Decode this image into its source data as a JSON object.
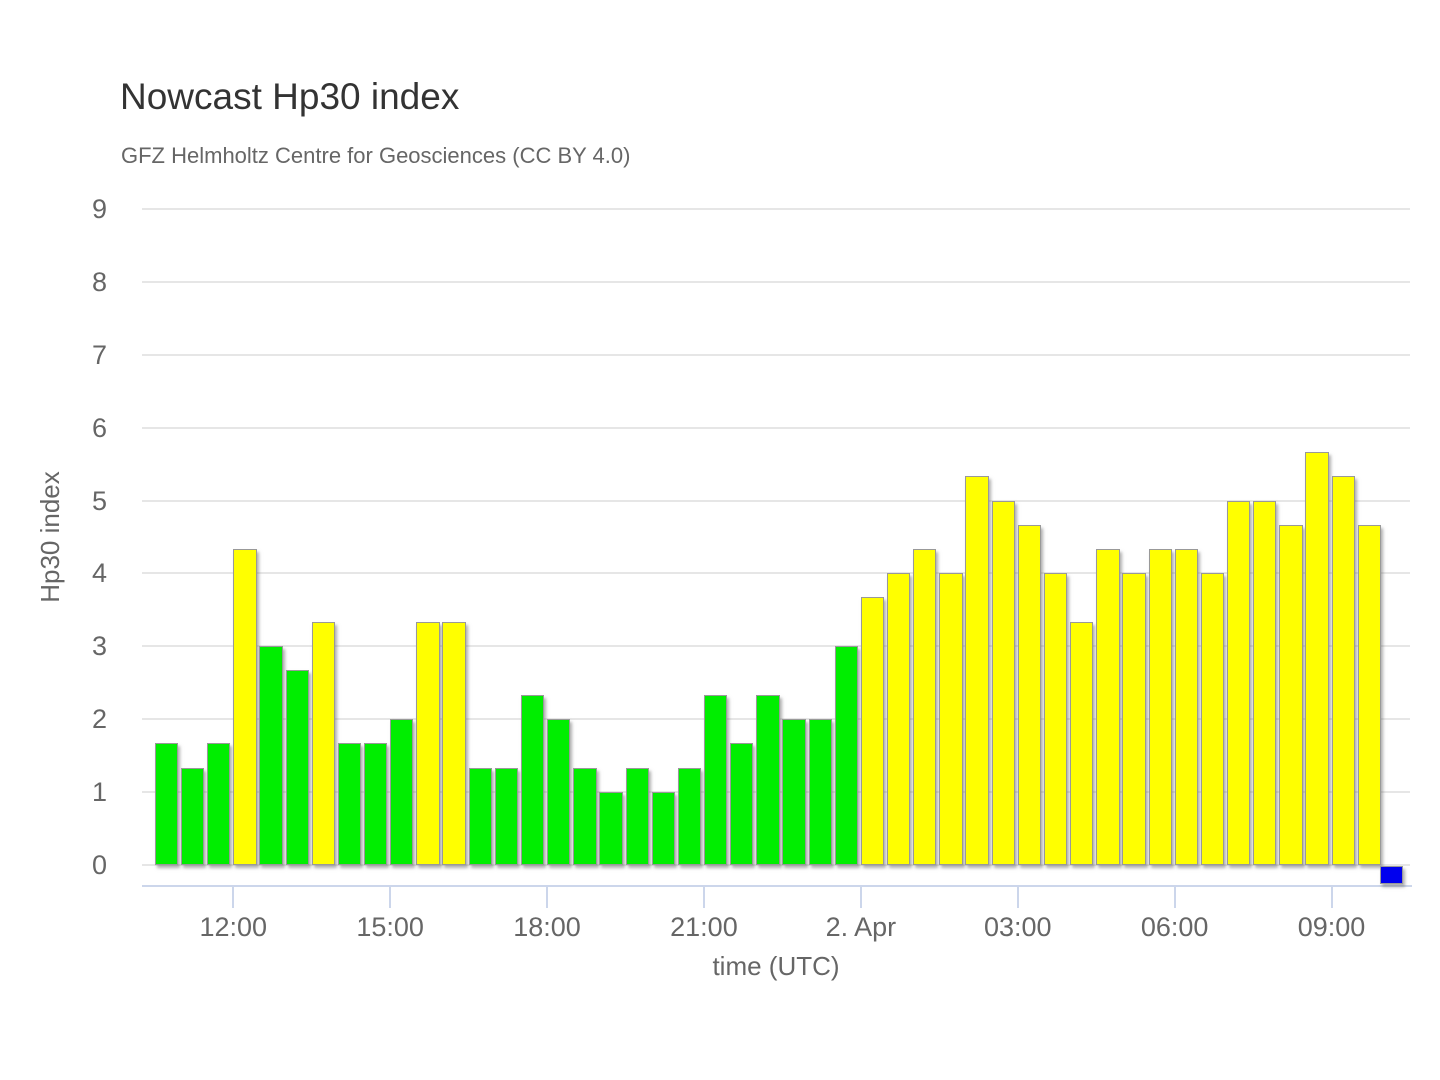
{
  "chart_data": {
    "type": "bar",
    "title": "Nowcast Hp30 index",
    "subtitle": "GFZ Helmholtz Centre for Geosciences (CC BY 4.0)",
    "xlabel": "time (UTC)",
    "ylabel": "Hp30 index",
    "ylim": [
      0,
      9
    ],
    "grid": "horizontal",
    "legend": "none",
    "bar_interval_minutes": 30,
    "y_ticks": [
      "0",
      "1",
      "2",
      "3",
      "4",
      "5",
      "6",
      "7",
      "8",
      "9"
    ],
    "x_ticks": [
      {
        "label": "12:00",
        "slot": 3
      },
      {
        "label": "15:00",
        "slot": 9
      },
      {
        "label": "18:00",
        "slot": 15
      },
      {
        "label": "21:00",
        "slot": 21
      },
      {
        "label": "2. Apr",
        "slot": 27
      },
      {
        "label": "03:00",
        "slot": 33
      },
      {
        "label": "06:00",
        "slot": 39
      },
      {
        "label": "09:00",
        "slot": 45
      }
    ],
    "colors": {
      "green": "#00ee00",
      "yellow": "#ffff00",
      "blue": "#0000ee",
      "title_text": "#333333",
      "axis_text": "#666666",
      "gridline": "#e6e6e6",
      "axis_line": "#ccd6eb"
    },
    "series": [
      {
        "name": "Hp30",
        "points": [
          [
            "Apr 1 10:30",
            1.67,
            "green"
          ],
          [
            "Apr 1 11:00",
            1.33,
            "green"
          ],
          [
            "Apr 1 11:30",
            1.67,
            "green"
          ],
          [
            "Apr 1 12:00",
            4.33,
            "yellow"
          ],
          [
            "Apr 1 12:30",
            3.0,
            "green"
          ],
          [
            "Apr 1 13:00",
            2.67,
            "green"
          ],
          [
            "Apr 1 13:30",
            3.33,
            "yellow"
          ],
          [
            "Apr 1 14:00",
            1.67,
            "green"
          ],
          [
            "Apr 1 14:30",
            1.67,
            "green"
          ],
          [
            "Apr 1 15:00",
            2.0,
            "green"
          ],
          [
            "Apr 1 15:30",
            3.33,
            "yellow"
          ],
          [
            "Apr 1 16:00",
            3.33,
            "yellow"
          ],
          [
            "Apr 1 16:30",
            1.33,
            "green"
          ],
          [
            "Apr 1 17:00",
            1.33,
            "green"
          ],
          [
            "Apr 1 17:30",
            2.33,
            "green"
          ],
          [
            "Apr 1 18:00",
            2.0,
            "green"
          ],
          [
            "Apr 1 18:30",
            1.33,
            "green"
          ],
          [
            "Apr 1 19:00",
            1.0,
            "green"
          ],
          [
            "Apr 1 19:30",
            1.33,
            "green"
          ],
          [
            "Apr 1 20:00",
            1.0,
            "green"
          ],
          [
            "Apr 1 20:30",
            1.33,
            "green"
          ],
          [
            "Apr 1 21:00",
            2.33,
            "green"
          ],
          [
            "Apr 1 21:30",
            1.67,
            "green"
          ],
          [
            "Apr 1 22:00",
            2.33,
            "green"
          ],
          [
            "Apr 1 22:30",
            2.0,
            "green"
          ],
          [
            "Apr 1 23:00",
            2.0,
            "green"
          ],
          [
            "Apr 1 23:30",
            3.0,
            "green"
          ],
          [
            "Apr 2 00:00",
            3.67,
            "yellow"
          ],
          [
            "Apr 2 00:30",
            4.0,
            "yellow"
          ],
          [
            "Apr 2 01:00",
            4.33,
            "yellow"
          ],
          [
            "Apr 2 01:30",
            4.0,
            "yellow"
          ],
          [
            "Apr 2 02:00",
            5.33,
            "yellow"
          ],
          [
            "Apr 2 02:30",
            5.0,
            "yellow"
          ],
          [
            "Apr 2 03:00",
            4.67,
            "yellow"
          ],
          [
            "Apr 2 03:30",
            4.0,
            "yellow"
          ],
          [
            "Apr 2 04:00",
            3.33,
            "yellow"
          ],
          [
            "Apr 2 04:30",
            4.33,
            "yellow"
          ],
          [
            "Apr 2 05:00",
            4.0,
            "yellow"
          ],
          [
            "Apr 2 05:30",
            4.33,
            "yellow"
          ],
          [
            "Apr 2 06:00",
            4.33,
            "yellow"
          ],
          [
            "Apr 2 06:30",
            4.0,
            "yellow"
          ],
          [
            "Apr 2 07:00",
            5.0,
            "yellow"
          ],
          [
            "Apr 2 07:30",
            5.0,
            "yellow"
          ],
          [
            "Apr 2 08:00",
            4.67,
            "yellow"
          ],
          [
            "Apr 2 08:30",
            5.67,
            "yellow"
          ],
          [
            "Apr 2 09:00",
            5.33,
            "yellow"
          ],
          [
            "Apr 2 09:30",
            4.67,
            "yellow"
          ]
        ]
      }
    ],
    "latest_marker": {
      "time": "Apr 2 10:00",
      "color": "blue",
      "drawn_below_zero_line": true
    }
  }
}
